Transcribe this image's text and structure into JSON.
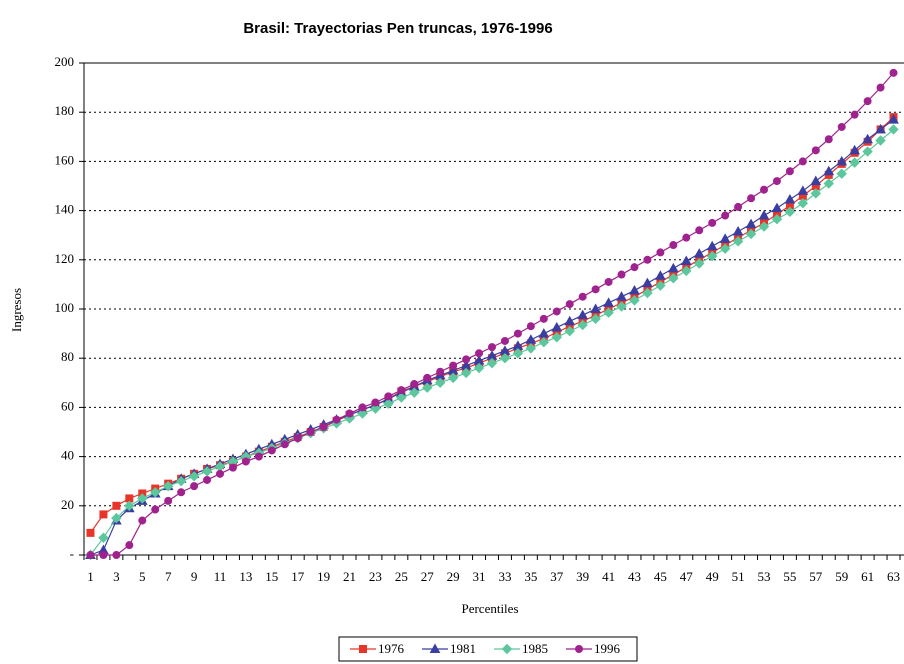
{
  "chart_data": {
    "type": "line",
    "title": "Brasil: Trayectorias Pen truncas, 1976-1996",
    "x_label": "Percentiles",
    "y_label": "Ingresos",
    "categories": [
      1,
      null,
      3,
      null,
      5,
      null,
      7,
      null,
      9,
      null,
      11,
      null,
      13,
      null,
      15,
      null,
      17,
      null,
      19,
      null,
      21,
      null,
      23,
      null,
      25,
      null,
      27,
      null,
      29,
      null,
      31,
      null,
      33,
      null,
      35,
      null,
      37,
      null,
      39,
      null,
      41,
      null,
      43,
      null,
      45,
      null,
      47,
      null,
      49,
      null,
      51,
      null,
      53,
      null,
      55,
      null,
      57,
      null,
      59,
      null,
      61,
      null,
      63
    ],
    "ylim": [
      0,
      200
    ],
    "yticks": [
      {
        "value": 0,
        "label": "-"
      },
      20,
      40,
      60,
      80,
      100,
      120,
      140,
      160,
      180,
      200
    ],
    "grid": true,
    "legend": "bottom",
    "series": [
      {
        "name": "1976",
        "color": "#e8352a",
        "marker": "square",
        "values": [
          9,
          16.5,
          20,
          23,
          25,
          27,
          29,
          31,
          33,
          35,
          36.5,
          38,
          40,
          42,
          44,
          46,
          48,
          50,
          52,
          54.5,
          57,
          59,
          61,
          63.5,
          66.5,
          68.5,
          70.5,
          72.5,
          74.5,
          76,
          78,
          80,
          82,
          84,
          86,
          88,
          90.5,
          93,
          95,
          97.5,
          100,
          102.5,
          105,
          108,
          111,
          114,
          117,
          120,
          123,
          126,
          129,
          132,
          135,
          138.5,
          142,
          146,
          150,
          154.5,
          159,
          163.5,
          168,
          173,
          178
        ]
      },
      {
        "name": "1981",
        "color": "#3a3ea0",
        "marker": "triangle",
        "values": [
          0,
          2,
          14,
          19,
          22,
          25,
          28,
          31,
          33,
          35,
          37,
          39,
          41,
          43,
          45,
          47,
          49,
          51,
          53,
          55,
          57,
          59,
          61,
          63.5,
          66,
          68.5,
          71,
          73,
          75,
          77,
          79,
          81,
          83,
          85,
          87.5,
          90,
          92.5,
          95,
          97.5,
          100,
          102.5,
          105,
          107.5,
          110.5,
          113.5,
          116.5,
          119.5,
          122.5,
          125.5,
          128.5,
          131.5,
          134.5,
          138,
          141,
          144.5,
          148,
          152,
          156,
          160,
          164.5,
          169,
          173,
          177
        ]
      },
      {
        "name": "1985",
        "color": "#5cc79c",
        "marker": "diamond",
        "values": [
          0,
          7,
          15,
          20,
          23,
          25.5,
          28,
          30,
          32,
          34,
          36,
          38,
          40,
          41.5,
          43.5,
          45.5,
          47.5,
          49.5,
          51.5,
          53.5,
          55.5,
          57.5,
          59.5,
          61.5,
          64,
          66,
          68,
          70,
          72,
          74,
          76,
          78,
          80,
          82,
          84,
          86.5,
          88.5,
          91,
          93.5,
          96,
          98.5,
          101,
          103.5,
          106.5,
          109.5,
          112.5,
          115.5,
          118.5,
          121.5,
          124.5,
          127.5,
          130.5,
          133.5,
          136.5,
          139.5,
          143,
          147,
          151,
          155,
          159.5,
          164,
          168.5,
          173
        ]
      },
      {
        "name": "1996",
        "color": "#a0228e",
        "marker": "circle",
        "values": [
          0,
          0,
          0,
          4,
          14,
          18.5,
          22,
          25.5,
          28,
          30.5,
          33,
          35.5,
          38,
          40,
          42.5,
          45,
          47.5,
          50,
          52,
          55,
          57.5,
          60,
          62,
          64.5,
          67,
          69.5,
          72,
          74.5,
          77,
          79.5,
          82,
          84.5,
          87,
          90,
          93,
          96,
          99,
          102,
          105,
          108,
          111,
          114,
          117,
          120,
          123,
          126,
          129,
          132,
          135,
          138,
          141.5,
          145,
          148.5,
          152,
          156,
          160,
          164.5,
          169,
          174,
          179,
          184.5,
          190,
          196
        ]
      }
    ]
  }
}
